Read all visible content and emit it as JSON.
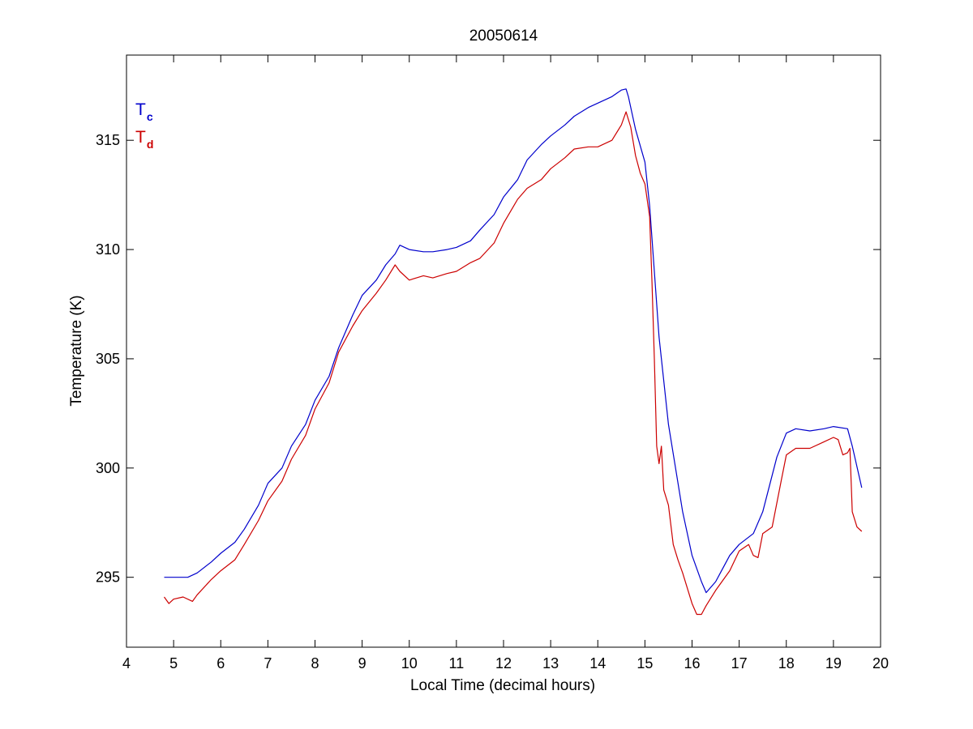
{
  "chart_data": {
    "type": "line",
    "title": "20050614",
    "xlabel": "Local Time (decimal hours)",
    "ylabel": "Temperature (K)",
    "xlim": [
      4,
      20
    ],
    "ylim": [
      291.8,
      318.9
    ],
    "xticks": [
      4,
      5,
      6,
      7,
      8,
      9,
      10,
      11,
      12,
      13,
      14,
      15,
      16,
      17,
      18,
      19,
      20
    ],
    "yticks": [
      295,
      300,
      305,
      310,
      315
    ],
    "grid": false,
    "legend_position": "top-left",
    "series": [
      {
        "name": "Tc",
        "legend_main": "T",
        "legend_sub": "c",
        "color": "#0000cc",
        "x": [
          4.8,
          5.0,
          5.3,
          5.5,
          5.8,
          6.0,
          6.3,
          6.5,
          6.8,
          7.0,
          7.3,
          7.5,
          7.8,
          8.0,
          8.3,
          8.5,
          8.8,
          9.0,
          9.3,
          9.5,
          9.7,
          9.8,
          10.0,
          10.3,
          10.5,
          10.8,
          11.0,
          11.3,
          11.5,
          11.8,
          12.0,
          12.3,
          12.5,
          12.8,
          13.0,
          13.3,
          13.5,
          13.8,
          14.0,
          14.3,
          14.5,
          14.6,
          14.65,
          14.8,
          15.0,
          15.1,
          15.2,
          15.3,
          15.5,
          15.8,
          16.0,
          16.2,
          16.3,
          16.5,
          16.8,
          17.0,
          17.3,
          17.5,
          17.8,
          18.0,
          18.2,
          18.5,
          18.8,
          19.0,
          19.3,
          19.4,
          19.6
        ],
        "y": [
          295.0,
          295.0,
          295.0,
          295.2,
          295.7,
          296.1,
          296.6,
          297.2,
          298.3,
          299.3,
          300.0,
          301.0,
          302.0,
          303.1,
          304.2,
          305.5,
          307.0,
          307.9,
          308.6,
          309.3,
          309.8,
          310.2,
          310.0,
          309.9,
          309.9,
          310.0,
          310.1,
          310.4,
          310.9,
          311.6,
          312.4,
          313.2,
          314.1,
          314.8,
          315.2,
          315.7,
          316.1,
          316.5,
          316.7,
          317.0,
          317.3,
          317.35,
          317.0,
          315.5,
          314.0,
          312.0,
          309.0,
          306.0,
          302.0,
          298.0,
          296.0,
          294.8,
          294.3,
          294.8,
          296.0,
          296.5,
          297.0,
          298.0,
          300.5,
          301.6,
          301.8,
          301.7,
          301.8,
          301.9,
          301.8,
          301.0,
          299.1
        ]
      },
      {
        "name": "Td",
        "legend_main": "T",
        "legend_sub": "d",
        "color": "#cc0000",
        "x": [
          4.8,
          4.9,
          5.0,
          5.2,
          5.4,
          5.5,
          5.8,
          6.0,
          6.3,
          6.5,
          6.8,
          7.0,
          7.3,
          7.5,
          7.8,
          8.0,
          8.3,
          8.5,
          8.8,
          9.0,
          9.3,
          9.5,
          9.7,
          9.8,
          10.0,
          10.3,
          10.5,
          10.8,
          11.0,
          11.3,
          11.5,
          11.8,
          12.0,
          12.3,
          12.5,
          12.8,
          13.0,
          13.3,
          13.5,
          13.8,
          14.0,
          14.3,
          14.5,
          14.6,
          14.7,
          14.8,
          14.9,
          15.0,
          15.1,
          15.15,
          15.2,
          15.25,
          15.3,
          15.35,
          15.4,
          15.5,
          15.6,
          15.7,
          15.8,
          15.9,
          16.0,
          16.1,
          16.2,
          16.3,
          16.5,
          16.8,
          17.0,
          17.2,
          17.3,
          17.4,
          17.5,
          17.7,
          17.9,
          18.0,
          18.2,
          18.5,
          18.8,
          19.0,
          19.1,
          19.2,
          19.3,
          19.35,
          19.4,
          19.5,
          19.6
        ],
        "y": [
          294.1,
          293.8,
          294.0,
          294.1,
          293.9,
          294.2,
          294.9,
          295.3,
          295.8,
          296.5,
          297.6,
          298.5,
          299.4,
          300.4,
          301.5,
          302.7,
          303.9,
          305.3,
          306.5,
          307.2,
          308.0,
          308.6,
          309.3,
          309.0,
          308.6,
          308.8,
          308.7,
          308.9,
          309.0,
          309.4,
          309.6,
          310.3,
          311.2,
          312.3,
          312.8,
          313.2,
          313.7,
          314.2,
          314.6,
          314.7,
          314.7,
          315.0,
          315.7,
          316.3,
          315.6,
          314.3,
          313.5,
          313.0,
          311.5,
          308.5,
          305.0,
          301.0,
          300.2,
          301.0,
          299.0,
          298.3,
          296.5,
          295.8,
          295.2,
          294.5,
          293.8,
          293.3,
          293.3,
          293.7,
          294.4,
          295.3,
          296.2,
          296.5,
          296.0,
          295.9,
          297.0,
          297.3,
          299.5,
          300.6,
          300.9,
          300.9,
          301.2,
          301.4,
          301.3,
          300.6,
          300.7,
          300.9,
          298.0,
          297.3,
          297.1
        ]
      }
    ]
  }
}
